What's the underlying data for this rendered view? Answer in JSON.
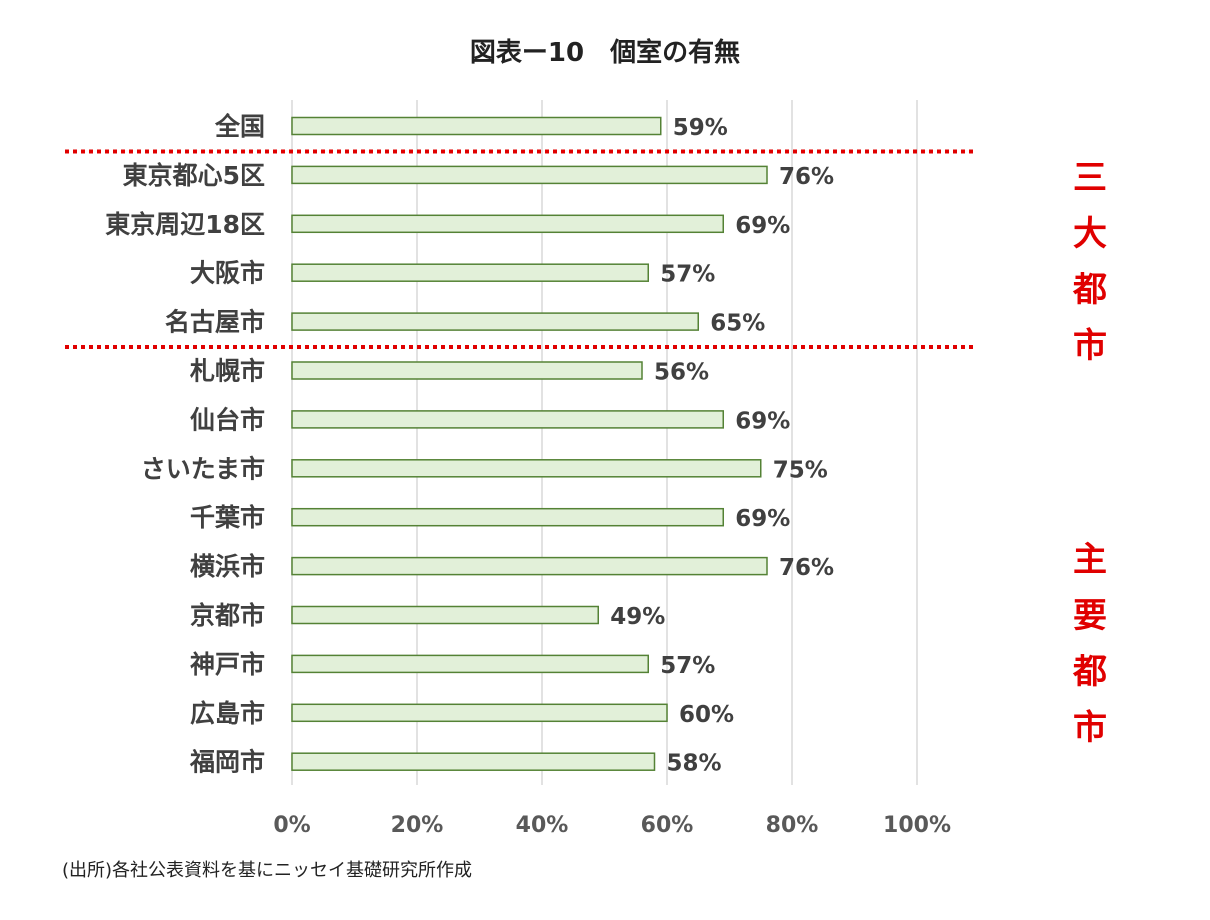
{
  "title": "図表ー10　個室の有無",
  "source": "(出所)各社公表資料を基にニッセイ基礎研究所作成",
  "colors": {
    "bar_fill": "#e2f0d9",
    "bar_stroke": "#548235",
    "divider": "#e00000",
    "grid": "#d9d9d9",
    "group_label": "#e00000"
  },
  "groups": [
    {
      "label": "三大都市",
      "chars": [
        "三",
        "大",
        "都",
        "市"
      ]
    },
    {
      "label": "主要都市",
      "chars": [
        "主",
        "要",
        "都",
        "市"
      ]
    }
  ],
  "chart_data": {
    "type": "bar",
    "orientation": "horizontal",
    "categories": [
      "全国",
      "東京都心5区",
      "東京周辺18区",
      "大阪市",
      "名古屋市",
      "札幌市",
      "仙台市",
      "さいたま市",
      "千葉市",
      "横浜市",
      "京都市",
      "神戸市",
      "広島市",
      "福岡市"
    ],
    "values": [
      59,
      76,
      69,
      57,
      65,
      56,
      69,
      75,
      69,
      76,
      49,
      57,
      60,
      58
    ],
    "value_labels": [
      "59%",
      "76%",
      "69%",
      "57%",
      "65%",
      "56%",
      "69%",
      "75%",
      "69%",
      "76%",
      "49%",
      "57%",
      "60%",
      "58%"
    ],
    "x_ticks": [
      "0%",
      "20%",
      "40%",
      "60%",
      "80%",
      "100%"
    ],
    "xlim": [
      0,
      110
    ],
    "grid": true,
    "legend": "none",
    "dividers_after_index": [
      0,
      4
    ]
  }
}
